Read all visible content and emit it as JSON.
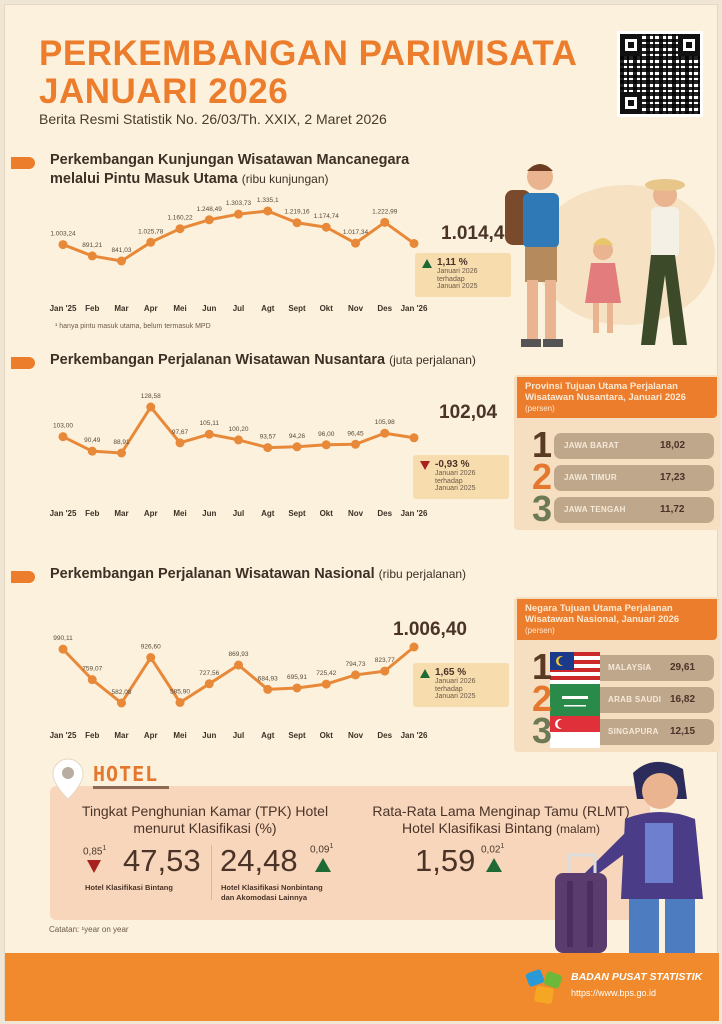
{
  "header": {
    "title_line1": "PERKEMBANGAN PARIWISATA",
    "title_line2": "JANUARI 2026",
    "subtitle": "Berita Resmi Statistik No. 26/03/Th. XXIX, 2 Maret 2026"
  },
  "sections": [
    {
      "title_line1": "Perkembangan Kunjungan Wisatawan Mancanegara",
      "title_line2": "melalui Pintu Masuk Utama",
      "unit": "(ribu kunjungan)",
      "highlight": "1.014,40",
      "highlight_sup": "1",
      "change": "1,11 %",
      "change_dir": "up",
      "change_note": [
        "Januari 2026",
        "terhadap",
        "Januari 2025"
      ],
      "footnote": "¹ hanya pintu masuk utama, belum termasuk MPD"
    },
    {
      "title_line1": "Perkembangan Perjalanan Wisatawan Nusantara",
      "unit": "(juta perjalanan)",
      "highlight": "102,04",
      "change": "-0,93 %",
      "change_dir": "down",
      "change_note": [
        "Januari 2026",
        "terhadap",
        "Januari 2025"
      ]
    },
    {
      "title_line1": "Perkembangan Perjalanan Wisatawan Nasional",
      "unit": "(ribu perjalanan)",
      "highlight": "1.006,40",
      "change": "1,65 %",
      "change_dir": "up",
      "change_note": [
        "Januari 2026",
        "terhadap",
        "Januari 2025"
      ]
    }
  ],
  "chart_data": [
    {
      "type": "line",
      "title": "Perkembangan Kunjungan Wisatawan Mancanegara melalui Pintu Masuk Utama",
      "ylabel": "ribu kunjungan",
      "categories": [
        "Jan '25",
        "Feb",
        "Mar",
        "Apr",
        "Mei",
        "Jun",
        "Jul",
        "Agt",
        "Sept",
        "Okt",
        "Nov",
        "Des",
        "Jan '26"
      ],
      "values": [
        1003.24,
        891.21,
        841.03,
        1025.78,
        1160.22,
        1248.49,
        1303.73,
        1335.1,
        1219.16,
        1174.74,
        1017.34,
        1222.99,
        1014.4
      ],
      "labels": [
        "1.003,24",
        "891,21",
        "841,03",
        "1.025,78",
        "1.160,22",
        "1.248,49",
        "1.303,73",
        "1.335,1",
        "1.219,16",
        "1.174,74",
        "1.017,34",
        "1.222,99",
        ""
      ]
    },
    {
      "type": "line",
      "title": "Perkembangan Perjalanan Wisatawan Nusantara",
      "ylabel": "juta perjalanan",
      "categories": [
        "Jan '25",
        "Feb",
        "Mar",
        "Apr",
        "Mei",
        "Jun",
        "Jul",
        "Agt",
        "Sept",
        "Okt",
        "Nov",
        "Des",
        "Jan '26"
      ],
      "values": [
        103.0,
        90.49,
        88.91,
        128.58,
        97.67,
        105.11,
        100.2,
        93.57,
        94.26,
        96.0,
        96.45,
        105.98,
        102.04
      ],
      "labels": [
        "103,00",
        "90,49",
        "88,91",
        "128,58",
        "97,67",
        "105,11",
        "100,20",
        "93,57",
        "94,26",
        "96,00",
        "96,45",
        "105,98",
        ""
      ]
    },
    {
      "type": "line",
      "title": "Perkembangan Perjalanan Wisatawan Nasional",
      "ylabel": "ribu perjalanan",
      "categories": [
        "Jan '25",
        "Feb",
        "Mar",
        "Apr",
        "Mei",
        "Jun",
        "Jul",
        "Agt",
        "Sept",
        "Okt",
        "Nov",
        "Des",
        "Jan '26"
      ],
      "values": [
        990.11,
        759.07,
        582.08,
        926.6,
        585.9,
        727.56,
        869.93,
        684.93,
        695.91,
        725.42,
        794.73,
        823.77,
        1006.4
      ],
      "labels": [
        "990,11",
        "759,07",
        "582,08",
        "926,60",
        "585,90",
        "727,56",
        "869,93",
        "684,93",
        "695,91",
        "725,42",
        "794,73",
        "823,77",
        ""
      ]
    }
  ],
  "panel_nusantara": {
    "title": "Provinsi Tujuan Utama Perjalanan Wisatawan Nusantara, Januari 2026",
    "unit": "(persen)",
    "items": [
      {
        "rank": "1",
        "name": "JAWA BARAT",
        "value": "18,02"
      },
      {
        "rank": "2",
        "name": "JAWA TIMUR",
        "value": "17,23"
      },
      {
        "rank": "3",
        "name": "JAWA TENGAH",
        "value": "11,72"
      }
    ]
  },
  "panel_nasional": {
    "title": "Negara Tujuan Utama Perjalanan Wisatawan Nasional, Januari 2026",
    "unit": "(persen)",
    "items": [
      {
        "rank": "1",
        "name": "MALAYSIA",
        "value": "29,61"
      },
      {
        "rank": "2",
        "name": "ARAB SAUDI",
        "value": "16,82"
      },
      {
        "rank": "3",
        "name": "SINGAPURA",
        "value": "12,15"
      }
    ]
  },
  "hotel": {
    "label": "HOTEL",
    "tpk_title_line1": "Tingkat Penghunian Kamar (TPK) Hotel",
    "tpk_title_line2": "menurut Klasifikasi (%)",
    "bintang": {
      "value": "47,53",
      "change": "0,85",
      "sup": "1",
      "dir": "down",
      "label": "Hotel Klasifikasi Bintang"
    },
    "nonbintang": {
      "value": "24,48",
      "change": "0,09",
      "sup": "1",
      "dir": "up",
      "label_line1": "Hotel Klasifikasi Nonbintang",
      "label_line2": "dan Akomodasi Lainnya"
    },
    "rlmt_title_line1": "Rata-Rata Lama Menginap Tamu (RLMT)",
    "rlmt_title_line2": "Hotel Klasifikasi Bintang",
    "rlmt_unit": "(malam)",
    "rlmt": {
      "value": "1,59",
      "change": "0,02",
      "sup": "1",
      "dir": "up"
    },
    "note": "Catatan: ¹year on year"
  },
  "footer": {
    "org": "BADAN PUSAT STATISTIK",
    "url": "https://www.bps.go.id"
  },
  "colors": {
    "accent": "#ec7d2d",
    "line": "#e8893a",
    "up": "#1f6a34",
    "down": "#a7221f"
  }
}
